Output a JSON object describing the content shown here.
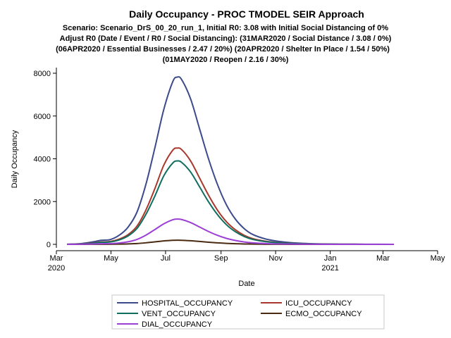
{
  "chart_data": {
    "type": "line",
    "title": "Daily Occupancy - PROC TMODEL SEIR Approach",
    "subtitle_lines": [
      "Scenario: Scenario_DrS_00_20_run_1, Initial R0: 3.08 with Initial Social Distancing of 0%",
      "Adjust R0 (Date / Event / R0 / Social Distancing): (31MAR2020 / Social Distance / 3.08 / 0%)",
      "(06APR2020 / Essential Businesses / 2.47 / 20%) (20APR2020 / Shelter In Place / 1.54 / 50%)",
      "(01MAY2020 / Reopen / 2.16 / 30%)"
    ],
    "xlabel": "Date",
    "ylabel": "Daily Occupancy",
    "xlim": [
      "2020-03-01",
      "2021-05-01"
    ],
    "ylim": [
      0,
      8000
    ],
    "x_ticks": [
      {
        "date": "2020-03-01",
        "label": "Mar",
        "year": "2020"
      },
      {
        "date": "2020-05-01",
        "label": "May",
        "year": ""
      },
      {
        "date": "2020-07-01",
        "label": "Jul",
        "year": ""
      },
      {
        "date": "2020-09-01",
        "label": "Sep",
        "year": ""
      },
      {
        "date": "2020-11-01",
        "label": "Nov",
        "year": ""
      },
      {
        "date": "2021-01-01",
        "label": "Jan",
        "year": "2021"
      },
      {
        "date": "2021-03-01",
        "label": "Mar",
        "year": ""
      },
      {
        "date": "2021-05-01",
        "label": "May",
        "year": ""
      }
    ],
    "y_ticks": [
      0,
      2000,
      4000,
      6000,
      8000
    ],
    "grid": false,
    "legend_position": "bottom",
    "x": [
      "2020-03-13",
      "2020-03-27",
      "2020-04-10",
      "2020-04-20",
      "2020-04-30",
      "2020-05-10",
      "2020-05-20",
      "2020-05-30",
      "2020-06-09",
      "2020-06-19",
      "2020-06-29",
      "2020-07-09",
      "2020-07-14",
      "2020-07-19",
      "2020-07-29",
      "2020-08-08",
      "2020-08-18",
      "2020-08-28",
      "2020-09-07",
      "2020-09-17",
      "2020-09-27",
      "2020-10-07",
      "2020-10-21",
      "2020-11-04",
      "2020-11-18",
      "2020-12-02",
      "2020-12-16",
      "2020-12-30",
      "2021-01-20",
      "2021-02-10",
      "2021-03-13"
    ],
    "series": [
      {
        "name": "HOSPITAL_OCCUPANCY",
        "color": "#3b4a8a",
        "values": [
          5,
          30,
          110,
          190,
          220,
          420,
          800,
          1500,
          2800,
          4500,
          6300,
          7600,
          7820,
          7700,
          6800,
          5400,
          4000,
          2800,
          1850,
          1180,
          730,
          450,
          250,
          140,
          80,
          45,
          25,
          15,
          8,
          4,
          2
        ]
      },
      {
        "name": "ICU_OCCUPANCY",
        "color": "#a8382c",
        "values": [
          3,
          15,
          60,
          110,
          130,
          240,
          450,
          850,
          1600,
          2600,
          3700,
          4400,
          4500,
          4430,
          3900,
          3100,
          2300,
          1600,
          1060,
          680,
          420,
          260,
          145,
          80,
          45,
          25,
          14,
          8,
          4,
          2,
          1
        ]
      },
      {
        "name": "VENT_OCCUPANCY",
        "color": "#0f6e5e",
        "values": [
          2,
          13,
          50,
          95,
          110,
          205,
          390,
          740,
          1400,
          2250,
          3200,
          3800,
          3900,
          3830,
          3380,
          2690,
          1990,
          1390,
          920,
          590,
          365,
          225,
          125,
          70,
          40,
          22,
          12,
          7,
          3,
          2,
          1
        ]
      },
      {
        "name": "ECMO_OCCUPANCY",
        "color": "#4a2a10",
        "values": [
          0,
          1,
          3,
          5,
          6,
          11,
          20,
          38,
          72,
          115,
          160,
          188,
          195,
          190,
          168,
          135,
          100,
          70,
          47,
          30,
          18,
          11,
          6,
          3,
          2,
          1,
          0,
          0,
          0,
          0,
          0
        ]
      },
      {
        "name": "DIAL_OCCUPANCY",
        "color": "#9b3fd6",
        "values": [
          1,
          4,
          16,
          30,
          35,
          64,
          120,
          230,
          430,
          690,
          960,
          1150,
          1180,
          1160,
          1020,
          810,
          600,
          420,
          280,
          180,
          110,
          68,
          38,
          21,
          12,
          7,
          4,
          2,
          1,
          1,
          0
        ]
      }
    ]
  }
}
